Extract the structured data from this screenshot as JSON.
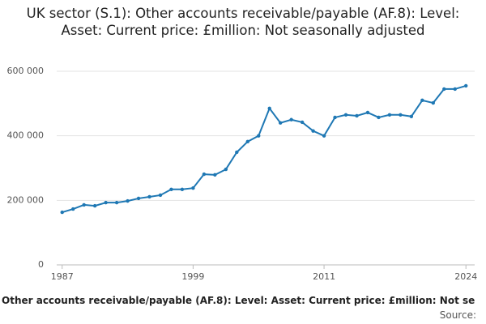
{
  "chart_data": {
    "type": "line",
    "title": "UK sector (S.1): Other accounts receivable/payable (AF.8): Level: Asset: Current price: £million: Not seasonally adjusted",
    "footer": "Other accounts receivable/payable (AF.8): Level: Asset: Current price: £million: Not se",
    "source": "Source:",
    "x": [
      1987,
      1988,
      1989,
      1990,
      1991,
      1992,
      1993,
      1994,
      1995,
      1996,
      1997,
      1998,
      1999,
      2000,
      2001,
      2002,
      2003,
      2004,
      2005,
      2006,
      2007,
      2008,
      2009,
      2010,
      2011,
      2012,
      2013,
      2014,
      2015,
      2016,
      2017,
      2018,
      2019,
      2020,
      2021,
      2022,
      2023,
      2024
    ],
    "series": [
      {
        "name": "Other accounts receivable/payable (AF.8)",
        "color": "#1f78b4",
        "values": [
          163000,
          173000,
          186000,
          183000,
          193000,
          193000,
          198000,
          206000,
          211000,
          216000,
          234000,
          234000,
          238000,
          281000,
          279000,
          296000,
          349000,
          382000,
          400000,
          485000,
          440000,
          450000,
          442000,
          415000,
          400000,
          457000,
          465000,
          462000,
          472000,
          457000,
          465000,
          465000,
          460000,
          510000,
          502000,
          545000,
          545000,
          555000
        ]
      }
    ],
    "xlim": [
      1986.5,
      2024.8
    ],
    "xticks": [
      1987,
      1999,
      2011,
      2024
    ],
    "ylim": [
      0,
      600000
    ],
    "yticks": [
      0,
      {
        "value": 200000,
        "label": "200 000"
      },
      {
        "value": 400000,
        "label": "400 000"
      },
      {
        "value": 600000,
        "label": "600 000"
      }
    ],
    "grid": true
  }
}
